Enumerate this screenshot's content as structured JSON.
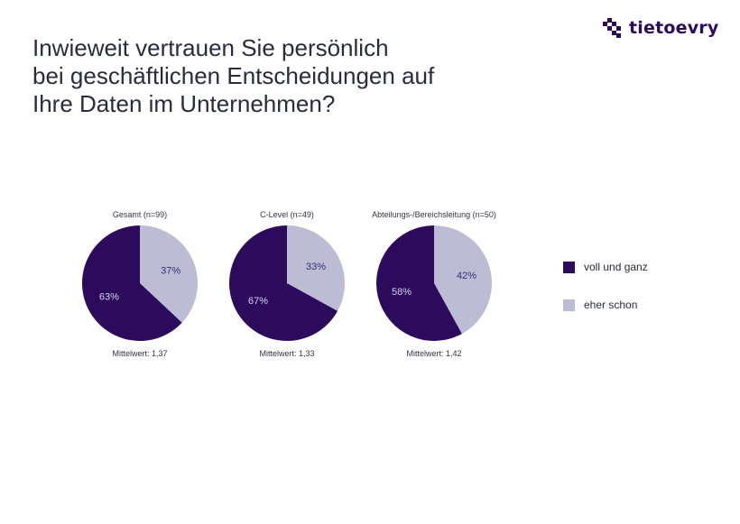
{
  "title_lines": [
    "Inwieweit vertrauen Sie persönlich",
    "bei geschäftlichen Entscheidungen auf",
    "Ihre Daten im Unternehmen?"
  ],
  "logo": {
    "text": "tietoevry",
    "icon": "tietoevry-logo-icon"
  },
  "colors": {
    "voll_und_ganz": "#2c0a5c",
    "eher_schon": "#bcbcd4",
    "label_dark": "#d8d4ee",
    "label_light": "#3a2b7a"
  },
  "chart_data": [
    {
      "type": "pie",
      "title": "Gesamt (n=99)",
      "labels": [
        "voll und ganz",
        "eher schon"
      ],
      "values": [
        63,
        37
      ],
      "value_labels": [
        "63%",
        "37%"
      ],
      "footer": "Mittelwert: 1,37"
    },
    {
      "type": "pie",
      "title": "C-Level (n=49)",
      "labels": [
        "voll und ganz",
        "eher schon"
      ],
      "values": [
        67,
        33
      ],
      "value_labels": [
        "67%",
        "33%"
      ],
      "footer": "Mittelwert: 1,33"
    },
    {
      "type": "pie",
      "title": "Abteilungs-/Bereichsleitung (n=50)",
      "labels": [
        "voll und ganz",
        "eher schon"
      ],
      "values": [
        58,
        42
      ],
      "value_labels": [
        "58%",
        "42%"
      ],
      "footer": "Mittelwert: 1,42"
    }
  ],
  "legend": [
    {
      "label": "voll und ganz",
      "color": "#2c0a5c"
    },
    {
      "label": "eher schon",
      "color": "#bcbcd4"
    }
  ]
}
